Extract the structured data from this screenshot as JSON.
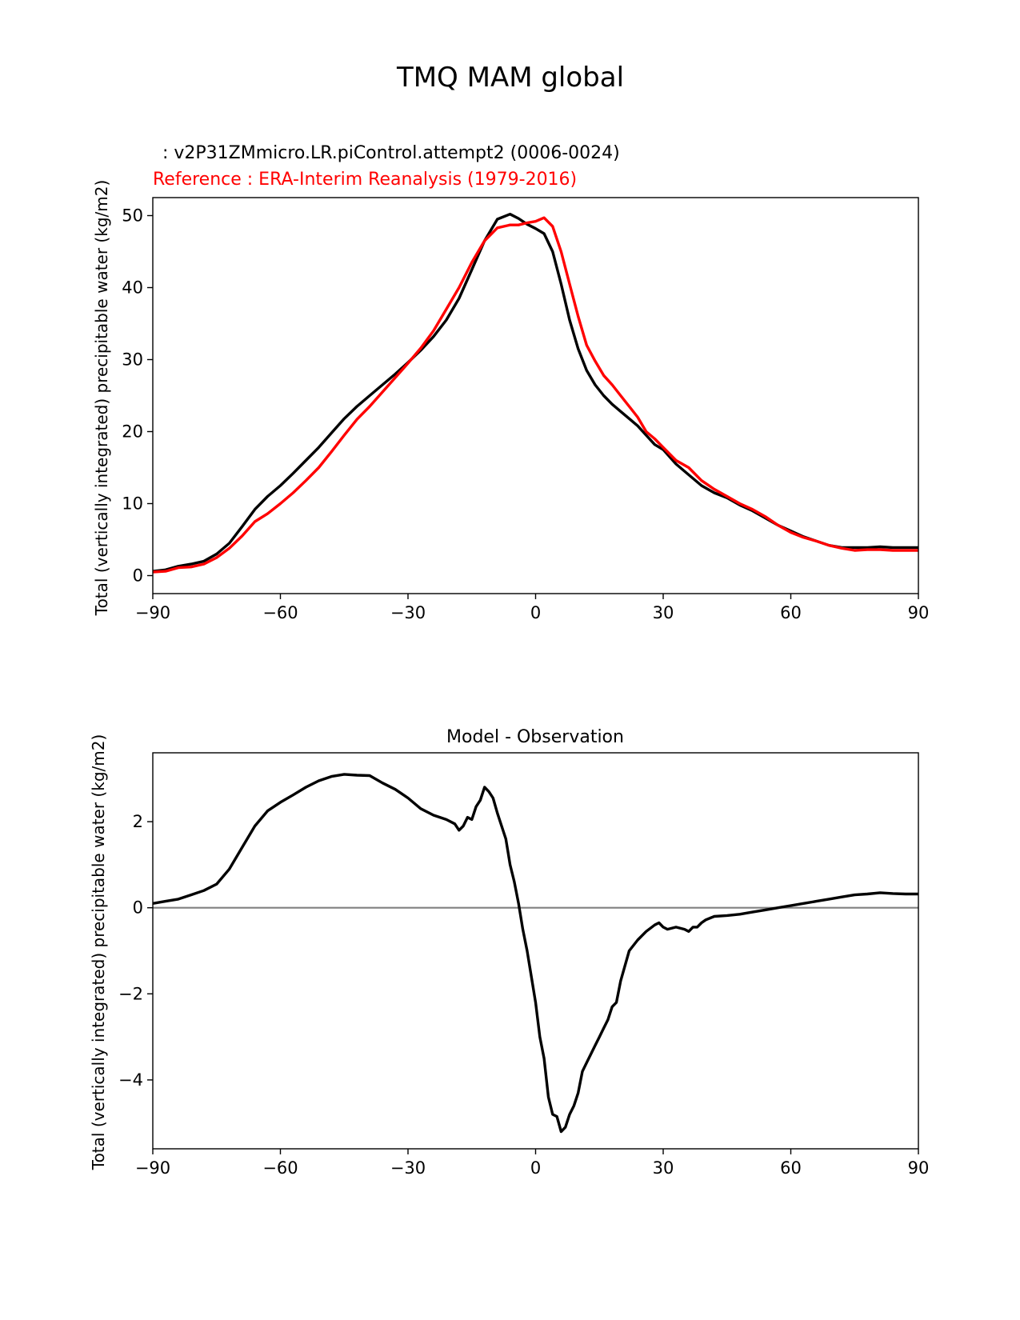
{
  "figure_title": "TMQ MAM global",
  "chart_data": [
    {
      "type": "line",
      "model_label": " : v2P31ZMmicro.LR.piControl.attempt2 (0006-0024)",
      "reference_label": "Reference : ERA-Interim Reanalysis (1979-2016)",
      "ylabel": "Total (vertically integrated) precipitable water (kg/m2)",
      "xlim": [
        -90,
        90
      ],
      "ylim": [
        -2.5,
        52.5
      ],
      "xticks": [
        -90,
        -60,
        -30,
        0,
        30,
        60,
        90
      ],
      "xtick_labels": [
        "−90",
        "−60",
        "−30",
        "0",
        "30",
        "60",
        "90"
      ],
      "yticks": [
        0,
        10,
        20,
        30,
        40,
        50
      ],
      "ytick_labels": [
        "0",
        "10",
        "20",
        "30",
        "40",
        "50"
      ],
      "series": [
        {
          "name": "Model",
          "color": "#000000",
          "x": [
            -90,
            -87,
            -84,
            -81,
            -78,
            -75,
            -72,
            -69,
            -66,
            -63,
            -60,
            -57,
            -54,
            -51,
            -48,
            -45,
            -42,
            -39,
            -36,
            -33,
            -30,
            -27,
            -24,
            -21,
            -18,
            -15,
            -12,
            -9,
            -6,
            -4,
            -2,
            0,
            2,
            4,
            6,
            8,
            10,
            12,
            14,
            16,
            18,
            20,
            22,
            24,
            26,
            28,
            30,
            33,
            36,
            39,
            42,
            45,
            48,
            51,
            54,
            57,
            60,
            63,
            66,
            69,
            72,
            75,
            78,
            81,
            84,
            87,
            90
          ],
          "values": [
            0.6,
            0.8,
            1.3,
            1.6,
            2.0,
            3.0,
            4.5,
            6.8,
            9.2,
            11.0,
            12.5,
            14.2,
            16.0,
            17.8,
            19.8,
            21.8,
            23.5,
            25.0,
            26.5,
            28.0,
            29.6,
            31.3,
            33.2,
            35.5,
            38.5,
            42.5,
            46.5,
            49.5,
            50.2,
            49.6,
            48.8,
            48.2,
            47.5,
            45.0,
            40.5,
            35.5,
            31.5,
            28.5,
            26.5,
            25.0,
            23.8,
            22.8,
            21.8,
            20.8,
            19.5,
            18.2,
            17.5,
            15.5,
            14.0,
            12.5,
            11.5,
            10.8,
            9.8,
            9.0,
            8.0,
            7.0,
            6.2,
            5.4,
            4.8,
            4.2,
            3.9,
            3.9,
            3.9,
            4.0,
            3.9,
            3.9,
            3.9
          ]
        },
        {
          "name": "Reference",
          "color": "#ff0000",
          "x": [
            -90,
            -87,
            -84,
            -81,
            -78,
            -75,
            -72,
            -69,
            -66,
            -63,
            -60,
            -57,
            -54,
            -51,
            -48,
            -45,
            -42,
            -39,
            -36,
            -33,
            -30,
            -27,
            -24,
            -21,
            -18,
            -15,
            -12,
            -9,
            -6,
            -4,
            -2,
            0,
            2,
            4,
            6,
            8,
            10,
            12,
            14,
            16,
            18,
            20,
            22,
            24,
            26,
            28,
            30,
            33,
            36,
            39,
            42,
            45,
            48,
            51,
            54,
            57,
            60,
            63,
            66,
            69,
            72,
            75,
            78,
            81,
            84,
            87,
            90
          ],
          "values": [
            0.5,
            0.6,
            1.1,
            1.2,
            1.6,
            2.5,
            3.8,
            5.5,
            7.5,
            8.6,
            10.0,
            11.5,
            13.2,
            15.0,
            17.2,
            19.5,
            21.7,
            23.5,
            25.5,
            27.5,
            29.5,
            31.6,
            34.0,
            37.0,
            40.0,
            43.5,
            46.5,
            48.3,
            48.7,
            48.7,
            49.0,
            49.2,
            49.7,
            48.5,
            45.0,
            40.5,
            36.0,
            32.0,
            29.8,
            27.8,
            26.5,
            25.0,
            23.5,
            22.0,
            20.0,
            19.0,
            17.8,
            16.0,
            15.0,
            13.2,
            12.0,
            11.0,
            10.0,
            9.2,
            8.2,
            7.0,
            6.0,
            5.3,
            4.8,
            4.2,
            3.8,
            3.5,
            3.6,
            3.6,
            3.5,
            3.5,
            3.5
          ]
        }
      ]
    },
    {
      "type": "line",
      "title": "Model - Observation",
      "ylabel": "Total (vertically integrated) precipitable water (kg/m2)",
      "xlim": [
        -90,
        90
      ],
      "ylim": [
        -5.6,
        3.6
      ],
      "xticks": [
        -90,
        -60,
        -30,
        0,
        30,
        60,
        90
      ],
      "xtick_labels": [
        "−90",
        "−60",
        "−30",
        "0",
        "30",
        "60",
        "90"
      ],
      "yticks": [
        -4,
        -2,
        0,
        2
      ],
      "ytick_labels": [
        "−4",
        "−2",
        "0",
        "2"
      ],
      "zero_line": {
        "value": 0,
        "color": "#808080"
      },
      "series": [
        {
          "name": "Model - Observation",
          "color": "#000000",
          "x": [
            -90,
            -87,
            -84,
            -81,
            -78,
            -75,
            -72,
            -69,
            -66,
            -63,
            -60,
            -57,
            -54,
            -51,
            -48,
            -45,
            -42,
            -39,
            -36,
            -33,
            -30,
            -27,
            -24,
            -21,
            -19,
            -18,
            -17,
            -16,
            -15,
            -14,
            -13,
            -12,
            -11,
            -10,
            -9,
            -8,
            -7,
            -6,
            -5,
            -4,
            -3,
            -2,
            -1,
            0,
            1,
            2,
            3,
            4,
            5,
            6,
            7,
            8,
            9,
            10,
            11,
            12,
            13,
            14,
            15,
            16,
            17,
            18,
            19,
            20,
            22,
            24,
            26,
            28,
            29,
            30,
            31,
            33,
            35,
            36,
            37,
            38,
            39,
            40,
            42,
            45,
            48,
            51,
            54,
            57,
            60,
            63,
            66,
            69,
            72,
            75,
            78,
            81,
            84,
            87,
            90
          ],
          "values": [
            0.1,
            0.15,
            0.2,
            0.3,
            0.4,
            0.55,
            0.9,
            1.4,
            1.9,
            2.25,
            2.45,
            2.62,
            2.8,
            2.95,
            3.05,
            3.1,
            3.08,
            3.07,
            2.9,
            2.75,
            2.55,
            2.3,
            2.15,
            2.05,
            1.95,
            1.8,
            1.9,
            2.1,
            2.05,
            2.35,
            2.5,
            2.8,
            2.7,
            2.55,
            2.2,
            1.9,
            1.6,
            1.0,
            0.6,
            0.1,
            -0.5,
            -1.0,
            -1.6,
            -2.2,
            -3.0,
            -3.5,
            -4.4,
            -4.8,
            -4.85,
            -5.2,
            -5.1,
            -4.8,
            -4.6,
            -4.3,
            -3.8,
            -3.6,
            -3.4,
            -3.2,
            -3.0,
            -2.8,
            -2.6,
            -2.3,
            -2.2,
            -1.7,
            -1.0,
            -0.75,
            -0.55,
            -0.4,
            -0.35,
            -0.45,
            -0.5,
            -0.45,
            -0.5,
            -0.55,
            -0.45,
            -0.45,
            -0.35,
            -0.28,
            -0.2,
            -0.18,
            -0.15,
            -0.1,
            -0.05,
            0.0,
            0.05,
            0.1,
            0.15,
            0.2,
            0.25,
            0.3,
            0.32,
            0.35,
            0.33,
            0.32,
            0.32
          ]
        }
      ]
    }
  ]
}
